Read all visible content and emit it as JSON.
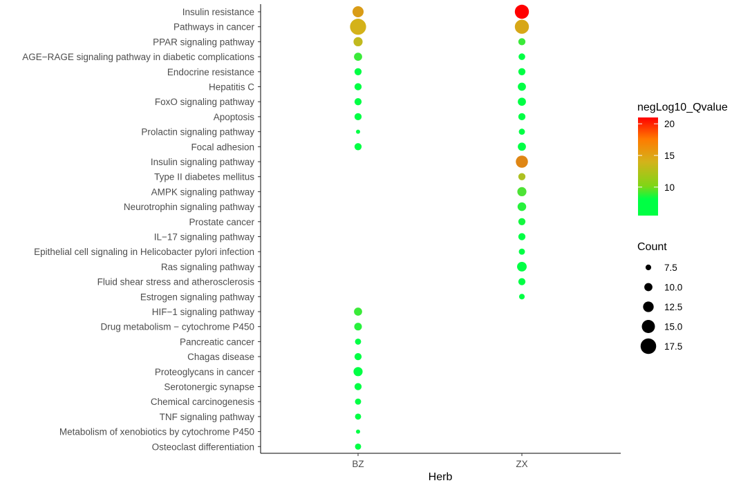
{
  "chart_data": {
    "type": "scatter",
    "title": "",
    "xlabel": "Herb",
    "ylabel": "",
    "x_categories": [
      "BZ",
      "ZX"
    ],
    "y_categories": [
      "Insulin resistance",
      "Pathways in cancer",
      "PPAR signaling pathway",
      "AGE−RAGE signaling pathway in diabetic complications",
      "Endocrine resistance",
      "Hepatitis C",
      "FoxO signaling pathway",
      "Apoptosis",
      "Prolactin signaling pathway",
      "Focal adhesion",
      "Insulin signaling pathway",
      "Type II diabetes mellitus",
      "AMPK signaling pathway",
      "Neurotrophin signaling pathway",
      "Prostate cancer",
      "IL−17 signaling pathway",
      "Epithelial cell signaling in Helicobacter pylori infection",
      "Ras signaling pathway",
      "Fluid shear stress and atherosclerosis",
      "Estrogen signaling pathway",
      "HIF−1 signaling pathway",
      "Drug metabolism − cytochrome P450",
      "Pancreatic cancer",
      "Chagas disease",
      "Proteoglycans in cancer",
      "Serotonergic synapse",
      "Chemical carcinogenesis",
      "TNF signaling pathway",
      "Metabolism of xenobiotics by cytochrome P450",
      "Osteoclast differentiation"
    ],
    "points": [
      {
        "herb": "BZ",
        "pathway": "Insulin resistance",
        "count": 13,
        "negLog10_Qvalue": 14
      },
      {
        "herb": "BZ",
        "pathway": "Pathways in cancer",
        "count": 18,
        "negLog10_Qvalue": 13
      },
      {
        "herb": "BZ",
        "pathway": "PPAR signaling pathway",
        "count": 11,
        "negLog10_Qvalue": 12.5
      },
      {
        "herb": "BZ",
        "pathway": "AGE−RAGE signaling pathway in diabetic complications",
        "count": 10,
        "negLog10_Qvalue": 9
      },
      {
        "herb": "BZ",
        "pathway": "Endocrine resistance",
        "count": 9,
        "negLog10_Qvalue": 7
      },
      {
        "herb": "BZ",
        "pathway": "Hepatitis C",
        "count": 9,
        "negLog10_Qvalue": 7
      },
      {
        "herb": "BZ",
        "pathway": "FoxO signaling pathway",
        "count": 9,
        "negLog10_Qvalue": 7
      },
      {
        "herb": "BZ",
        "pathway": "Apoptosis",
        "count": 9,
        "negLog10_Qvalue": 7
      },
      {
        "herb": "BZ",
        "pathway": "Prolactin signaling pathway",
        "count": 6,
        "negLog10_Qvalue": 7
      },
      {
        "herb": "BZ",
        "pathway": "Focal adhesion",
        "count": 9,
        "negLog10_Qvalue": 6.5
      },
      {
        "herb": "BZ",
        "pathway": "HIF−1 signaling pathway",
        "count": 10,
        "negLog10_Qvalue": 9
      },
      {
        "herb": "BZ",
        "pathway": "Drug metabolism − cytochrome P450",
        "count": 9.5,
        "negLog10_Qvalue": 8.5
      },
      {
        "herb": "BZ",
        "pathway": "Pancreatic cancer",
        "count": 8,
        "negLog10_Qvalue": 7
      },
      {
        "herb": "BZ",
        "pathway": "Chagas disease",
        "count": 9,
        "negLog10_Qvalue": 7
      },
      {
        "herb": "BZ",
        "pathway": "Proteoglycans in cancer",
        "count": 11,
        "negLog10_Qvalue": 7
      },
      {
        "herb": "BZ",
        "pathway": "Serotonergic synapse",
        "count": 9,
        "negLog10_Qvalue": 7
      },
      {
        "herb": "BZ",
        "pathway": "Chemical carcinogenesis",
        "count": 8,
        "negLog10_Qvalue": 7
      },
      {
        "herb": "BZ",
        "pathway": "TNF signaling pathway",
        "count": 8,
        "negLog10_Qvalue": 7
      },
      {
        "herb": "BZ",
        "pathway": "Metabolism of xenobiotics by cytochrome P450",
        "count": 6,
        "negLog10_Qvalue": 7
      },
      {
        "herb": "BZ",
        "pathway": "Osteoclast differentiation",
        "count": 8,
        "negLog10_Qvalue": 7
      },
      {
        "herb": "ZX",
        "pathway": "Insulin resistance",
        "count": 16,
        "negLog10_Qvalue": 21
      },
      {
        "herb": "ZX",
        "pathway": "Pathways in cancer",
        "count": 16,
        "negLog10_Qvalue": 13.5
      },
      {
        "herb": "ZX",
        "pathway": "PPAR signaling pathway",
        "count": 9,
        "negLog10_Qvalue": 9
      },
      {
        "herb": "ZX",
        "pathway": "AGE−RAGE signaling pathway in diabetic complications",
        "count": 8.5,
        "negLog10_Qvalue": 7
      },
      {
        "herb": "ZX",
        "pathway": "Endocrine resistance",
        "count": 9,
        "negLog10_Qvalue": 7
      },
      {
        "herb": "ZX",
        "pathway": "Hepatitis C",
        "count": 10,
        "negLog10_Qvalue": 7
      },
      {
        "herb": "ZX",
        "pathway": "FoxO signaling pathway",
        "count": 10,
        "negLog10_Qvalue": 7.5
      },
      {
        "herb": "ZX",
        "pathway": "Apoptosis",
        "count": 9,
        "negLog10_Qvalue": 7
      },
      {
        "herb": "ZX",
        "pathway": "Prolactin signaling pathway",
        "count": 8,
        "negLog10_Qvalue": 7
      },
      {
        "herb": "ZX",
        "pathway": "Focal adhesion",
        "count": 10,
        "negLog10_Qvalue": 6.5
      },
      {
        "herb": "ZX",
        "pathway": "Insulin signaling pathway",
        "count": 14,
        "negLog10_Qvalue": 15
      },
      {
        "herb": "ZX",
        "pathway": "Type II diabetes mellitus",
        "count": 9,
        "negLog10_Qvalue": 12
      },
      {
        "herb": "ZX",
        "pathway": "AMPK signaling pathway",
        "count": 11,
        "negLog10_Qvalue": 9.5
      },
      {
        "herb": "ZX",
        "pathway": "Neurotrophin signaling pathway",
        "count": 10.5,
        "negLog10_Qvalue": 8.5
      },
      {
        "herb": "ZX",
        "pathway": "Prostate cancer",
        "count": 9,
        "negLog10_Qvalue": 8
      },
      {
        "herb": "ZX",
        "pathway": "IL−17 signaling pathway",
        "count": 9,
        "negLog10_Qvalue": 7.5
      },
      {
        "herb": "ZX",
        "pathway": "Epithelial cell signaling in Helicobacter pylori infection",
        "count": 8,
        "negLog10_Qvalue": 7.5
      },
      {
        "herb": "ZX",
        "pathway": "Ras signaling pathway",
        "count": 11.5,
        "negLog10_Qvalue": 6.5
      },
      {
        "herb": "ZX",
        "pathway": "Fluid shear stress and atherosclerosis",
        "count": 9,
        "negLog10_Qvalue": 7
      },
      {
        "herb": "ZX",
        "pathway": "Estrogen signaling pathway",
        "count": 7.5,
        "negLog10_Qvalue": 7
      }
    ],
    "color_legend": {
      "title": "negLog10_Qvalue",
      "ticks": [
        10,
        15,
        20
      ],
      "range": [
        5.5,
        21
      ],
      "low_color": "#00ff44",
      "mid_color": "#d4b21a",
      "high_color": "#ff0000"
    },
    "size_legend": {
      "title": "Count",
      "entries": [
        7.5,
        10.0,
        12.5,
        15.0,
        17.5
      ],
      "labels": [
        "7.5",
        "10.0",
        "12.5",
        "15.0",
        "17.5"
      ]
    },
    "grid": false,
    "legend_position": "right"
  }
}
